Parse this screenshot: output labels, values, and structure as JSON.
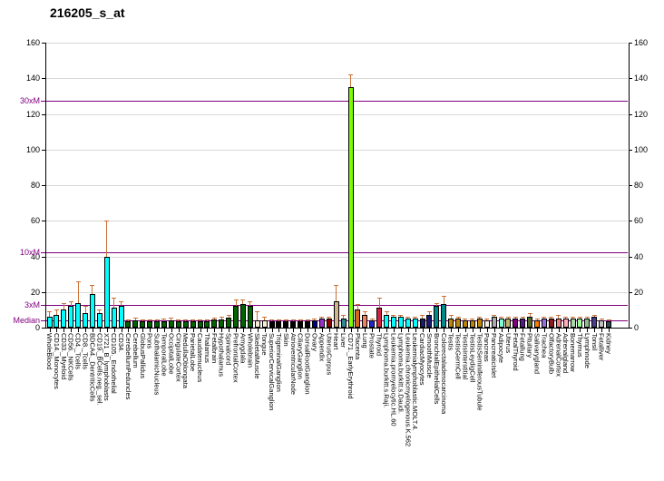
{
  "title": "216205_s_at",
  "chart_data": {
    "type": "bar",
    "title": "216205_s_at",
    "xlabel": "",
    "ylabel": "",
    "ylim": [
      0,
      160
    ],
    "yticks": [
      0,
      20,
      40,
      60,
      80,
      100,
      120,
      140,
      160
    ],
    "grid": true,
    "error_bar_color": "#c87137",
    "threshold_color": "#800080",
    "thresholds": [
      {
        "label": "30xM",
        "value": 127.5
      },
      {
        "label": "10xM",
        "value": 42.5
      },
      {
        "label": "3xM",
        "value": 12.75
      },
      {
        "label": "Median",
        "value": 4.25
      }
    ],
    "categories": [
      "WholeBlood",
      "CD14._Monocytes",
      "CD33._Myeloid",
      "CD56._NKCells",
      "CD4._Tcells",
      "CD8._Tcells",
      "BDCA4._DentriticCells",
      "CD19._BCells.neg._sel.",
      "X721_B_lymphoblasts",
      "CD105._Endothelial",
      "CD34.",
      "CerebellumPeduncles",
      "Cerebellum",
      "GlobusPallidus",
      "Pons",
      "SubthalamicNucleus",
      "TemporalLobe",
      "OccipitalLobe",
      "CingulateCortex",
      "MedullaOblongata",
      "ParietalLobe",
      "Caudatenucleus",
      "Thalamus",
      "Fetalbrain",
      "Hypothalamus",
      "Spinalcord",
      "PrefrontalCortex",
      "Amygdala",
      "Wholebrain",
      "SkeletalMuscle",
      "Tongue",
      "SuperiorCervicalGanglion",
      "TrigeminalGanglion",
      "Skin",
      "AtrioventricularNode",
      "CiliaryGanglion",
      "DorsalRootGanglion",
      "Ovary",
      "Appendix",
      "UterusCorpus",
      "Heart",
      "Liver",
      "CD71._EarlyErythroid",
      "Placenta",
      "Lung",
      "Prostate",
      "Thyroid",
      "Lymphoma.burkitt.s.Raji.",
      "Leukemia.promyelocytic.HL.60",
      "Lymphoma.burkitt.s.Daudi.",
      "Leukemia.chronicmyelogenous.K.562",
      "Leukemialymphoblastic.MOLT.4.",
      "CardiacMyocytes",
      "SmoothMuscle",
      "BronchialEpithelialCells",
      "Colorectaladenocarcinoma",
      "Testis",
      "TestisGermCell",
      "TestisInterstitial",
      "TestisLeydigCell",
      "TestisSeminiferousTubule",
      "Pancreas",
      "PancreaticIslet",
      "Adipocyte",
      "Uterus",
      "FetalThyroid",
      "Fetallung",
      "Pituitary",
      "Salivarygland",
      "Trachea",
      "OlfactoryBulb",
      "AdrenalCortex",
      "Adrenalgland",
      "Bonemarrow",
      "Thymus",
      "Lymphnode",
      "Tonsil",
      "Fetalliver",
      "Kidney"
    ],
    "values": [
      6,
      7,
      10,
      12,
      14,
      8,
      19,
      8,
      40,
      11,
      12,
      3.5,
      4,
      3.5,
      3.5,
      3.5,
      3.5,
      4,
      3.5,
      3.5,
      3.5,
      3.5,
      3.5,
      4.5,
      4.5,
      5.5,
      12,
      13,
      12,
      4,
      4,
      3.5,
      3.5,
      3.5,
      3.5,
      3.5,
      3.5,
      4,
      5,
      5,
      15,
      5,
      135,
      10,
      7,
      4,
      11,
      7,
      6,
      6,
      5,
      5,
      5,
      7,
      12,
      13,
      5,
      5,
      4,
      4,
      5,
      4,
      6,
      5,
      5,
      5,
      5,
      6,
      4,
      5,
      5,
      5,
      5,
      5,
      5,
      5,
      6,
      4,
      3.5
    ],
    "errors_hi": [
      9,
      10,
      14,
      15,
      26,
      12,
      24,
      10,
      60,
      17,
      15,
      4.5,
      5.5,
      4.5,
      4.5,
      4.5,
      5,
      5.5,
      4.5,
      4.5,
      4.5,
      4.5,
      4.5,
      5.5,
      6,
      7,
      16,
      16,
      15,
      9,
      6,
      4.5,
      4.5,
      4.5,
      4.5,
      4.5,
      4.5,
      5,
      6,
      6,
      24,
      7,
      142,
      13,
      9,
      5,
      17,
      9,
      7,
      7,
      6,
      6,
      7,
      9,
      14,
      18,
      7,
      6,
      5,
      5,
      6,
      5,
      7,
      6,
      6,
      6,
      6,
      8,
      5,
      6,
      6,
      7,
      6,
      6,
      6,
      6,
      7,
      5,
      4.5
    ],
    "colors": [
      "#00FFFF",
      "#00FFFF",
      "#00FFFF",
      "#00FFFF",
      "#00FFFF",
      "#00FFFF",
      "#00FFFF",
      "#00FFFF",
      "#00FFFF",
      "#00FFFF",
      "#00FFFF",
      "#006400",
      "#006400",
      "#006400",
      "#006400",
      "#006400",
      "#006400",
      "#006400",
      "#006400",
      "#006400",
      "#006400",
      "#006400",
      "#006400",
      "#006400",
      "#006400",
      "#006400",
      "#006400",
      "#006400",
      "#006400",
      "#FAEBD7",
      "#FAEBD7",
      "#000000",
      "#000000",
      "#000000",
      "#000000",
      "#000000",
      "#000000",
      "#000080",
      "#9932CC",
      "#8B0000",
      "#D2B48C",
      "#2E8B8B",
      "#7CFC00",
      "#D2691E",
      "#F08060",
      "#2424CD",
      "#CC2244",
      "#00FFFF",
      "#00FFFF",
      "#00FFFF",
      "#00FFFF",
      "#00FFFF",
      "#191970",
      "#191970",
      "#008B8B",
      "#008B8B",
      "#B8860B",
      "#B8860B",
      "#B8860B",
      "#B8860B",
      "#B8860B",
      "#F5F0DC",
      "#A9A9A9",
      "#7FFFD4",
      "#BDB76B",
      "#800080",
      "#551A8B",
      "#556B2F",
      "#FF7F00",
      "#9370DB",
      "#8B1A1A",
      "#F08080",
      "#FFAEB9",
      "#A8D8A8",
      "#98FB98",
      "#8FBC8F",
      "#483D8B",
      "#C0C0C0",
      "#2F4F4F"
    ]
  }
}
